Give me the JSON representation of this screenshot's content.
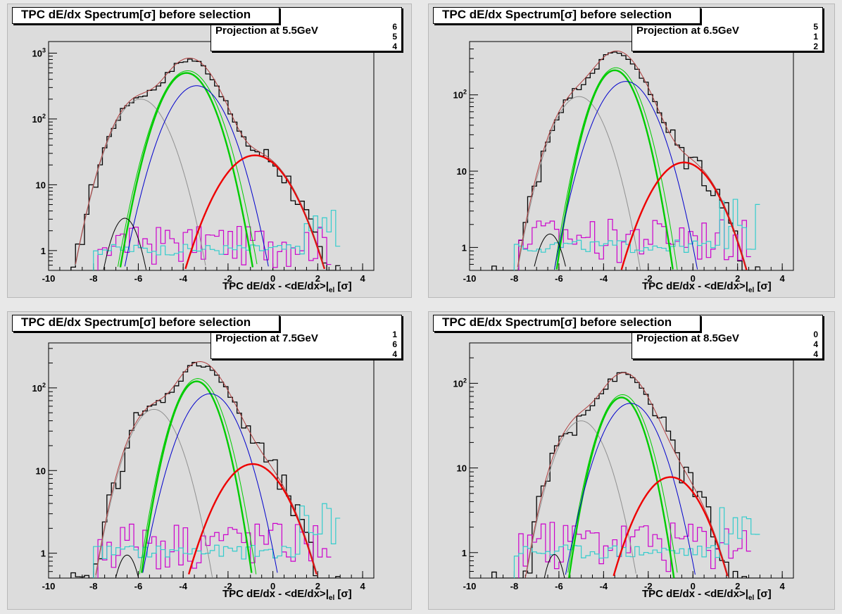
{
  "shared": {
    "title": "TPC dE/dx Spectrum[σ] before selection",
    "xlabel_main": "TPC dE/dx - <dE/dx>|",
    "xlabel_sub": "el",
    "xlabel_end": " [σ]",
    "x_ticks": [
      "-10",
      "-8",
      "-6",
      "-4",
      "-2",
      "0",
      "2",
      "4"
    ],
    "colors": {
      "data": "#000000",
      "fit_total": "#b04040",
      "pion": "#0000cc",
      "kaon_proton_gray": "#909090",
      "electron": "#ff0000",
      "green": "#00cc00",
      "magenta": "#cc00cc",
      "cyan": "#33cccc",
      "small_black": "#000000"
    }
  },
  "panels": [
    {
      "projection": "Projection at 5.5GeV",
      "digits": [
        "6",
        "5",
        "4"
      ],
      "y_ticks": [
        "10^3",
        "10^2",
        "10",
        "1"
      ]
    },
    {
      "projection": "Projection at 6.5GeV",
      "digits": [
        "5",
        "1",
        "2"
      ],
      "y_ticks": [
        "10^2",
        "10",
        "1"
      ]
    },
    {
      "projection": "Projection at 7.5GeV",
      "digits": [
        "1",
        "6",
        "4"
      ],
      "y_ticks": [
        "10^2",
        "10",
        "1"
      ]
    },
    {
      "projection": "Projection at 8.5GeV",
      "digits": [
        "0",
        "4",
        "4"
      ],
      "y_ticks": [
        "10^2",
        "10",
        "1"
      ]
    }
  ],
  "chart_data": [
    {
      "type": "line",
      "title": "TPC dE/dx Spectrum[σ] before selection",
      "subtitle": "Projection at 5.5GeV",
      "xlabel": "TPC dE/dx - <dE/dx>|el [σ]",
      "xlim": [
        -10,
        4.5
      ],
      "ylim": [
        0.5,
        1500
      ],
      "yscale": "log",
      "series": [
        {
          "kind": "gauss",
          "color": "gray",
          "amp": 200,
          "mean": -5.9,
          "sigma": 0.85
        },
        {
          "kind": "gauss",
          "color": "green",
          "amp": 500,
          "mean": -3.85,
          "sigma": 0.8
        },
        {
          "kind": "gauss",
          "color": "blue",
          "amp": 320,
          "mean": -3.4,
          "sigma": 0.9
        },
        {
          "kind": "gauss",
          "color": "red",
          "amp": 28,
          "mean": -0.8,
          "sigma": 1.1
        },
        {
          "kind": "gauss",
          "color": "black_small",
          "amp": 3.1,
          "mean": -6.6,
          "sigma": 0.5
        }
      ]
    },
    {
      "type": "line",
      "title": "TPC dE/dx Spectrum[σ] before selection",
      "subtitle": "Projection at 6.5GeV",
      "xlabel": "TPC dE/dx - <dE/dx>|el [σ]",
      "xlim": [
        -10,
        4.5
      ],
      "ylim": [
        0.5,
        500
      ],
      "yscale": "log",
      "series": [
        {
          "kind": "gauss",
          "color": "gray",
          "amp": 95,
          "mean": -5.1,
          "sigma": 0.85
        },
        {
          "kind": "gauss",
          "color": "green",
          "amp": 210,
          "mean": -3.5,
          "sigma": 0.75
        },
        {
          "kind": "gauss",
          "color": "blue",
          "amp": 150,
          "mean": -3.0,
          "sigma": 0.95
        },
        {
          "kind": "gauss",
          "color": "red",
          "amp": 13,
          "mean": -0.4,
          "sigma": 1.1
        },
        {
          "kind": "gauss",
          "color": "black_small",
          "amp": 1.5,
          "mean": -6.4,
          "sigma": 0.5
        }
      ]
    },
    {
      "type": "line",
      "title": "TPC dE/dx Spectrum[σ] before selection",
      "subtitle": "Projection at 7.5GeV",
      "xlabel": "TPC dE/dx - <dE/dx>|el [σ]",
      "xlim": [
        -10,
        4.5
      ],
      "ylim": [
        0.5,
        350
      ],
      "yscale": "log",
      "series": [
        {
          "kind": "gauss",
          "color": "gray",
          "amp": 55,
          "mean": -5.3,
          "sigma": 0.85
        },
        {
          "kind": "gauss",
          "color": "green",
          "amp": 120,
          "mean": -3.4,
          "sigma": 0.75
        },
        {
          "kind": "gauss",
          "color": "blue",
          "amp": 85,
          "mean": -2.8,
          "sigma": 0.95
        },
        {
          "kind": "gauss",
          "color": "red",
          "amp": 12,
          "mean": -0.9,
          "sigma": 1.15
        },
        {
          "kind": "gauss",
          "color": "black_small",
          "amp": 0.95,
          "mean": -6.5,
          "sigma": 0.45
        }
      ]
    },
    {
      "type": "line",
      "title": "TPC dE/dx Spectrum[σ] before selection",
      "subtitle": "Projection at 8.5GeV",
      "xlabel": "TPC dE/dx - <dE/dx>|el [σ]",
      "xlim": [
        -10,
        4.5
      ],
      "ylim": [
        0.5,
        300
      ],
      "yscale": "log",
      "series": [
        {
          "kind": "gauss",
          "color": "gray",
          "amp": 36,
          "mean": -5.0,
          "sigma": 0.85
        },
        {
          "kind": "gauss",
          "color": "green",
          "amp": 68,
          "mean": -3.2,
          "sigma": 0.75
        },
        {
          "kind": "gauss",
          "color": "blue",
          "amp": 58,
          "mean": -2.8,
          "sigma": 0.95
        },
        {
          "kind": "gauss",
          "color": "red",
          "amp": 7.8,
          "mean": -1.0,
          "sigma": 1.1
        },
        {
          "kind": "gauss",
          "color": "black_small",
          "amp": 0.95,
          "mean": -6.2,
          "sigma": 0.4
        }
      ]
    }
  ]
}
